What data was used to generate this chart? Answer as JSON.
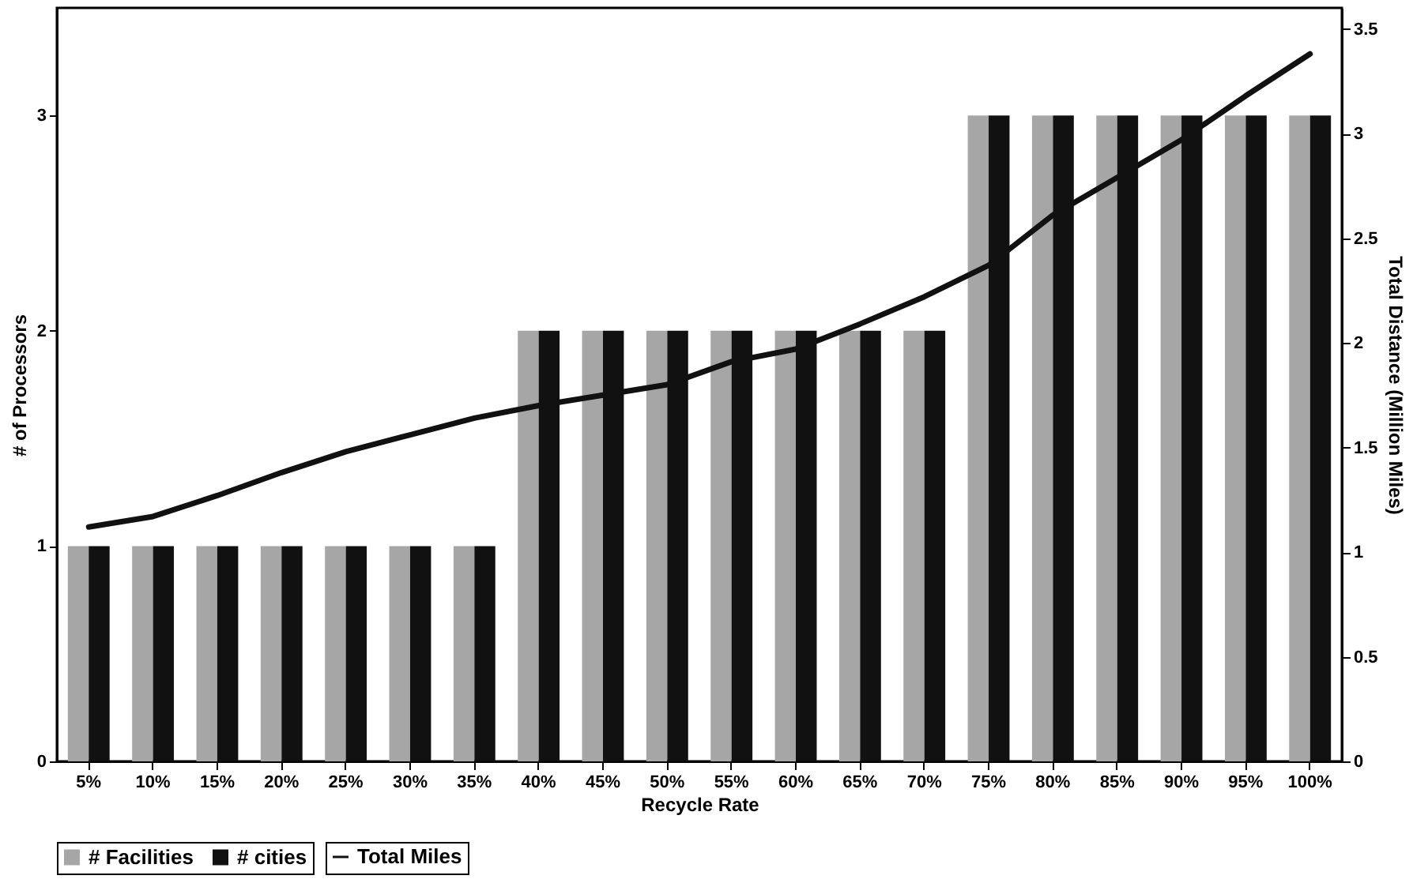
{
  "chart_data": {
    "type": "bar",
    "xlabel": "Recycle Rate",
    "ylabel": "# of Processors",
    "y2label": "Total Distance (Million Miles)",
    "categories": [
      "5%",
      "10%",
      "15%",
      "20%",
      "25%",
      "30%",
      "35%",
      "40%",
      "45%",
      "50%",
      "55%",
      "60%",
      "65%",
      "70%",
      "75%",
      "80%",
      "85%",
      "90%",
      "95%",
      "100%"
    ],
    "series": [
      {
        "name": "# Facilities",
        "color": "#a6a6a6",
        "values": [
          1,
          1,
          1,
          1,
          1,
          1,
          1,
          2,
          2,
          2,
          2,
          2,
          2,
          2,
          3,
          3,
          3,
          3,
          3,
          3
        ]
      },
      {
        "name": "# cities",
        "color": "#111111",
        "values": [
          1,
          1,
          1,
          1,
          1,
          1,
          1,
          2,
          2,
          2,
          2,
          2,
          2,
          2,
          3,
          3,
          3,
          3,
          3,
          3
        ]
      },
      {
        "name": "Total Miles",
        "type": "line",
        "axis": "y2",
        "color": "#111111",
        "values": [
          1.12,
          1.17,
          1.27,
          1.38,
          1.48,
          1.56,
          1.64,
          1.7,
          1.75,
          1.8,
          1.91,
          1.97,
          2.09,
          2.22,
          2.37,
          2.61,
          2.79,
          2.97,
          3.18,
          3.38
        ]
      }
    ],
    "ylim": [
      0,
      3.5
    ],
    "yticks": [
      0,
      1,
      2,
      3
    ],
    "y2lim": [
      0,
      3.6
    ],
    "y2ticks": [
      0,
      0.5,
      1,
      1.5,
      2,
      2.5,
      3,
      3.5
    ],
    "grid": false,
    "legend": "bottom",
    "marker": "none",
    "line_style": "solid"
  }
}
